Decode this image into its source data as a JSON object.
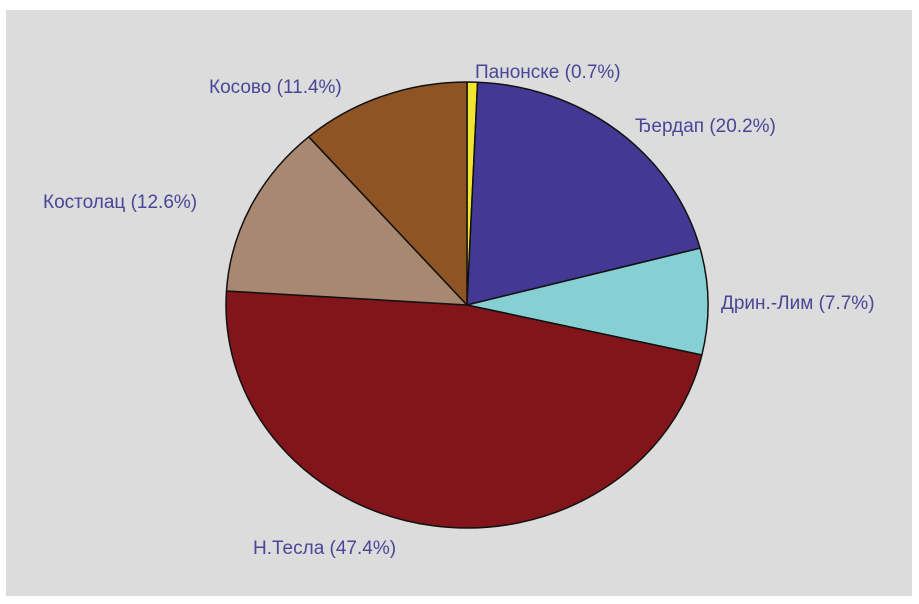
{
  "chart_data": {
    "type": "pie",
    "start_angle_deg": 0,
    "direction": "clockwise",
    "slices": [
      {
        "label": "Панонске (0.7%)",
        "name": "Панонске",
        "value": 0.7,
        "color": "#f2e530"
      },
      {
        "label": "Ђердап (20.2%)",
        "name": "Ђердап",
        "value": 20.2,
        "color": "#433894"
      },
      {
        "label": "Дрин.-Лим (7.7%)",
        "name": "Дрин.-Лим",
        "value": 7.7,
        "color": "#86cfd2"
      },
      {
        "label": "Н.Тесла (47.4%)",
        "name": "Н.Тесла",
        "value": 47.4,
        "color": "#821519"
      },
      {
        "label": "Костолац (12.6%)",
        "name": "Костолац",
        "value": 12.6,
        "color": "#a88870"
      },
      {
        "label": "Косово (11.4%)",
        "name": "Косово",
        "value": 11.4,
        "color": "#8f5424"
      }
    ],
    "label_color": "#4a4596",
    "background": "#dcdcdc"
  }
}
